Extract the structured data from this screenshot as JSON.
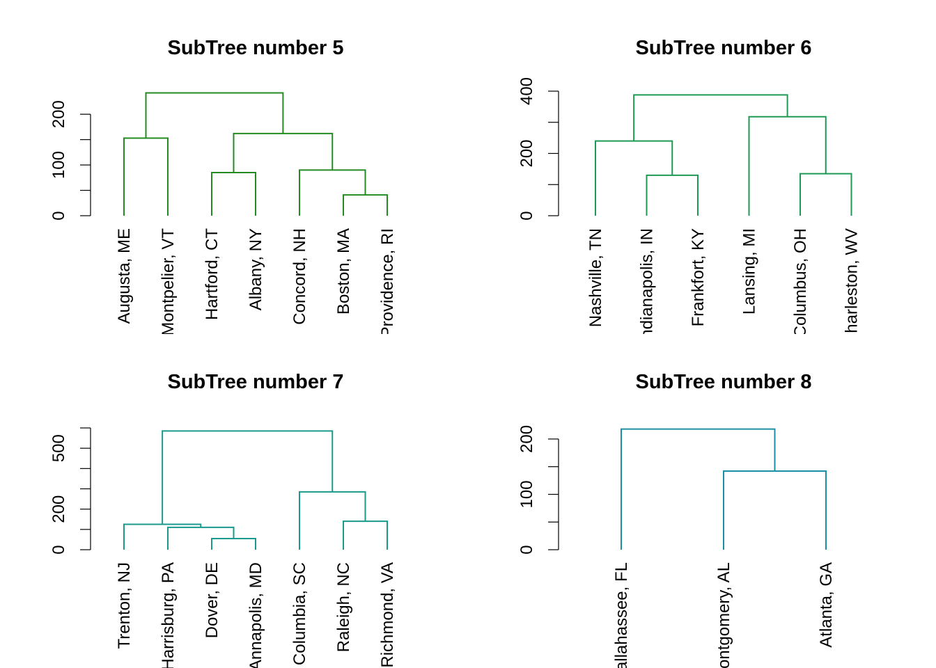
{
  "chart_data": [
    {
      "type": "dendrogram",
      "title": "SubTree number 5",
      "color": "#238B22",
      "ylim": [
        0,
        240
      ],
      "yticks": [
        0,
        50,
        100,
        150,
        200
      ],
      "ytick_labels": [
        "0",
        "",
        "100",
        "",
        "200"
      ],
      "leaves": [
        "Augusta, ME",
        "Montpelier, VT",
        "Hartford, CT",
        "Albany, NY",
        "Concord, NH",
        "Boston, MA",
        "Providence, RI"
      ],
      "merges": [
        {
          "left": 5,
          "right": 6,
          "height": 41
        },
        {
          "left": 4,
          "right": "m0",
          "height": 90
        },
        {
          "left": 2,
          "right": 3,
          "height": 85
        },
        {
          "left": "m2",
          "right": "m1",
          "height": 162
        },
        {
          "left": 0,
          "right": 1,
          "height": 153
        },
        {
          "left": "m4",
          "right": "m3",
          "height": 242
        }
      ]
    },
    {
      "type": "dendrogram",
      "title": "SubTree number 6",
      "color": "#1E9A53",
      "ylim": [
        0,
        400
      ],
      "yticks": [
        0,
        100,
        200,
        300,
        400
      ],
      "ytick_labels": [
        "0",
        "",
        "200",
        "",
        "400"
      ],
      "leaves": [
        "Nashville, TN",
        "Indianapolis, IN",
        "Frankfort, KY",
        "Lansing, MI",
        "Columbus, OH",
        "Charleston, WV"
      ],
      "merges": [
        {
          "left": 1,
          "right": 2,
          "height": 130
        },
        {
          "left": 0,
          "right": "m0",
          "height": 240
        },
        {
          "left": 4,
          "right": 5,
          "height": 135
        },
        {
          "left": 3,
          "right": "m2",
          "height": 318
        },
        {
          "left": "m1",
          "right": "m3",
          "height": 388
        }
      ]
    },
    {
      "type": "dendrogram",
      "title": "SubTree number 7",
      "color": "#1A9A8C",
      "ylim": [
        0,
        600
      ],
      "yticks": [
        0,
        100,
        200,
        300,
        400,
        500,
        600
      ],
      "ytick_labels": [
        "0",
        "",
        "200",
        "",
        "",
        "500",
        ""
      ],
      "leaves": [
        "Trenton, NJ",
        "Harrisburg, PA",
        "Dover, DE",
        "Annapolis, MD",
        "Columbia, SC",
        "Raleigh, NC",
        "Richmond, VA"
      ],
      "merges": [
        {
          "left": 2,
          "right": 3,
          "height": 55
        },
        {
          "left": 1,
          "right": "m0",
          "height": 110
        },
        {
          "left": 0,
          "right": "m1",
          "height": 125
        },
        {
          "left": 5,
          "right": 6,
          "height": 140
        },
        {
          "left": 4,
          "right": "m3",
          "height": 285
        },
        {
          "left": "m2",
          "right": "m4",
          "height": 585
        }
      ]
    },
    {
      "type": "dendrogram",
      "title": "SubTree number 8",
      "color": "#1B8FA3",
      "ylim": [
        0,
        220
      ],
      "yticks": [
        0,
        50,
        100,
        150,
        200
      ],
      "ytick_labels": [
        "0",
        "",
        "100",
        "",
        "200"
      ],
      "leaves": [
        "Tallahassee, FL",
        "Montgomery, AL",
        "Atlanta, GA"
      ],
      "merges": [
        {
          "left": 1,
          "right": 2,
          "height": 142
        },
        {
          "left": 0,
          "right": "m0",
          "height": 218
        }
      ]
    }
  ]
}
